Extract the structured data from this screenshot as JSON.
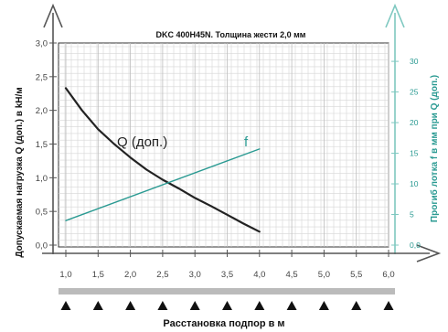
{
  "chart_data": {
    "type": "line",
    "title": "DKC 400H45N. Толщина жести 2,0 мм",
    "xlabel": "Расстановка подпор в м",
    "ylabel": "Допускаемая нагрузка Q (доп.) в kH/м",
    "y2label": "Прогиб лотка f в мм при Q (доп.)",
    "x_ticks": [
      "1,0",
      "1,5",
      "2,0",
      "2,5",
      "3,0",
      "3,5",
      "4,0",
      "4,5",
      "5,0",
      "5,5",
      "6,0"
    ],
    "y_ticks": [
      "0,0",
      "0,5",
      "1,0",
      "1,5",
      "2,0",
      "2,5",
      "3,0"
    ],
    "y2_ticks": [
      "0,0",
      "5",
      "10",
      "15",
      "20",
      "25",
      "30"
    ],
    "xlim": [
      1.0,
      6.0
    ],
    "ylim": [
      0,
      3.0
    ],
    "y2lim": [
      0,
      33
    ],
    "grid": true,
    "series": [
      {
        "name": "Q (доп.)",
        "axis": "left",
        "color": "#222222",
        "x": [
          1.0,
          1.25,
          1.5,
          1.75,
          2.0,
          2.25,
          2.5,
          2.75,
          3.0,
          3.25,
          3.5,
          3.75,
          4.0
        ],
        "y": [
          2.33,
          2.0,
          1.72,
          1.5,
          1.3,
          1.12,
          0.97,
          0.84,
          0.7,
          0.58,
          0.45,
          0.32,
          0.2
        ]
      },
      {
        "name": "f",
        "axis": "right",
        "color": "#2a9a92",
        "x": [
          1.0,
          4.0
        ],
        "y": [
          4.0,
          15.7
        ]
      }
    ],
    "supports": {
      "count": 11,
      "color": "#111111",
      "bar_color": "#bbbbbb"
    }
  }
}
